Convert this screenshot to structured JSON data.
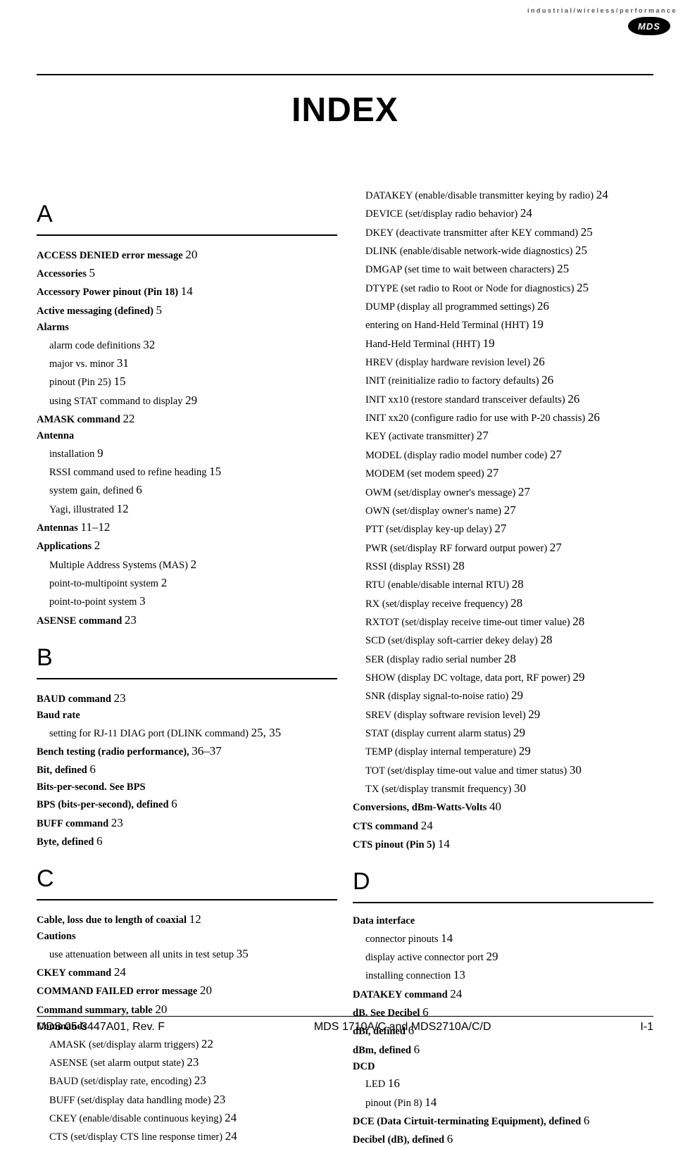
{
  "branding": {
    "tagline": "industrial/wireless/performance",
    "logo_text": "MDS",
    "logo_bg": "#000000",
    "logo_fg": "#ffffff"
  },
  "title": "INDEX",
  "footer": {
    "left": "MDS 05-3447A01, Rev. F",
    "center": "MDS 1710A/C and MDS2710A/C/D",
    "right": "I-1"
  },
  "left_col": [
    {
      "type": "letter",
      "text": "A"
    },
    {
      "type": "entry",
      "bold": true,
      "label": "ACCESS DENIED error message",
      "page": "20"
    },
    {
      "type": "entry",
      "bold": true,
      "label": "Accessories",
      "page": "5"
    },
    {
      "type": "entry",
      "bold": true,
      "label": "Accessory Power pinout (Pin 18)",
      "page": "14"
    },
    {
      "type": "entry",
      "bold": true,
      "label": "Active messaging (defined)",
      "page": "5"
    },
    {
      "type": "entry",
      "bold": true,
      "label": "Alarms"
    },
    {
      "type": "sub",
      "label": "alarm code definitions",
      "page": "32"
    },
    {
      "type": "sub",
      "label": "major vs. minor",
      "page": "31"
    },
    {
      "type": "sub",
      "label": "pinout (Pin 25)",
      "page": "15"
    },
    {
      "type": "sub",
      "label": "using STAT command to display",
      "page": "29"
    },
    {
      "type": "entry",
      "bold": true,
      "label": "AMASK command",
      "page": "22"
    },
    {
      "type": "entry",
      "bold": true,
      "label": "Antenna"
    },
    {
      "type": "sub",
      "label": "installation",
      "page": "9"
    },
    {
      "type": "sub",
      "label": "RSSI command used to refine heading",
      "page": "15"
    },
    {
      "type": "sub",
      "label": "system gain, defined",
      "page": "6"
    },
    {
      "type": "sub",
      "label": "Yagi, illustrated",
      "page": "12"
    },
    {
      "type": "entry",
      "bold": true,
      "label": "Antennas",
      "page": "11–12"
    },
    {
      "type": "entry",
      "bold": true,
      "label": "Applications",
      "page": "2"
    },
    {
      "type": "sub",
      "label": "Multiple Address Systems (MAS)",
      "page": "2"
    },
    {
      "type": "sub",
      "label": "point-to-multipoint system",
      "page": "2"
    },
    {
      "type": "sub",
      "label": "point-to-point system",
      "page": "3"
    },
    {
      "type": "entry",
      "bold": true,
      "label": "ASENSE command",
      "page": "23"
    },
    {
      "type": "letter",
      "text": "B"
    },
    {
      "type": "entry",
      "bold": true,
      "label": "BAUD command",
      "page": "23"
    },
    {
      "type": "entry",
      "bold": true,
      "label": "Baud rate"
    },
    {
      "type": "sub",
      "label": "setting for RJ-11 DIAG port (DLINK command)",
      "page": "25, 35"
    },
    {
      "type": "entry",
      "bold": true,
      "label": "Bench testing (radio performance),",
      "page": "36–37"
    },
    {
      "type": "entry",
      "bold": true,
      "label": "Bit, defined",
      "page": "6"
    },
    {
      "type": "entry",
      "bold": true,
      "label": "Bits-per-second. See BPS"
    },
    {
      "type": "entry",
      "bold": true,
      "label": "BPS (bits-per-second), defined",
      "page": "6"
    },
    {
      "type": "entry",
      "bold": true,
      "label": "BUFF command",
      "page": "23"
    },
    {
      "type": "entry",
      "bold": true,
      "label": "Byte, defined",
      "page": "6"
    },
    {
      "type": "letter",
      "text": "C"
    },
    {
      "type": "entry",
      "bold": true,
      "label": "Cable, loss due to length of coaxial",
      "page": "12"
    },
    {
      "type": "entry",
      "bold": true,
      "label": "Cautions"
    },
    {
      "type": "sub",
      "label": "use attenuation between all units in test setup",
      "page": "35"
    },
    {
      "type": "entry",
      "bold": true,
      "label": "CKEY command",
      "page": "24"
    },
    {
      "type": "entry",
      "bold": true,
      "label": "COMMAND FAILED error message",
      "page": "20"
    },
    {
      "type": "entry",
      "bold": true,
      "label": "Command summary, table",
      "page": "20"
    },
    {
      "type": "entry",
      "bold": true,
      "label": "Commands"
    },
    {
      "type": "sub",
      "label": "AMASK (set/display alarm triggers)",
      "page": "22"
    },
    {
      "type": "sub",
      "label": "ASENSE (set alarm output state)",
      "page": "23"
    },
    {
      "type": "sub",
      "label": "BAUD (set/display rate, encoding)",
      "page": "23"
    },
    {
      "type": "sub",
      "label": "BUFF (set/display data handling mode)",
      "page": "23"
    },
    {
      "type": "sub",
      "label": "CKEY (enable/disable continuous keying)",
      "page": "24"
    },
    {
      "type": "sub",
      "label": "CTS (set/display CTS line response timer)",
      "page": "24"
    }
  ],
  "right_col": [
    {
      "type": "sub",
      "label": "DATAKEY (enable/disable transmitter keying by radio)",
      "page": "24"
    },
    {
      "type": "sub",
      "label": "DEVICE (set/display radio behavior)",
      "page": "24"
    },
    {
      "type": "sub",
      "label": "DKEY (deactivate transmitter after KEY command)",
      "page": "25"
    },
    {
      "type": "sub",
      "label": "DLINK (enable/disable network-wide diagnostics)",
      "page": "25"
    },
    {
      "type": "sub",
      "label": "DMGAP (set time to wait between characters)",
      "page": "25"
    },
    {
      "type": "sub",
      "label": "DTYPE (set radio to Root or Node for diagnostics)",
      "page": "25"
    },
    {
      "type": "sub",
      "label": "DUMP (display all programmed settings)",
      "page": "26"
    },
    {
      "type": "sub",
      "label": "entering on Hand-Held Terminal (HHT)",
      "page": "19"
    },
    {
      "type": "sub",
      "label": "Hand-Held Terminal (HHT)",
      "page": "19"
    },
    {
      "type": "sub",
      "label": "HREV (display hardware revision level)",
      "page": "26"
    },
    {
      "type": "sub",
      "label": "INIT (reinitialize radio to factory defaults)",
      "page": "26"
    },
    {
      "type": "sub",
      "label": "INIT xx10 (restore standard transceiver defaults)",
      "page": "26"
    },
    {
      "type": "sub",
      "label": "INIT xx20 (configure radio for use with P-20 chassis)",
      "page": "26"
    },
    {
      "type": "sub",
      "label": "KEY (activate transmitter)",
      "page": "27"
    },
    {
      "type": "sub",
      "label": "MODEL (display radio model number code)",
      "page": "27"
    },
    {
      "type": "sub",
      "label": "MODEM (set modem speed)",
      "page": "27"
    },
    {
      "type": "sub",
      "label": "OWM (set/display owner's message)",
      "page": "27"
    },
    {
      "type": "sub",
      "label": "OWN (set/display owner's name)",
      "page": "27"
    },
    {
      "type": "sub",
      "label": "PTT (set/display key-up delay)",
      "page": "27"
    },
    {
      "type": "sub",
      "label": "PWR (set/display RF forward output power)",
      "page": "27"
    },
    {
      "type": "sub",
      "label": "RSSI (display RSSI)",
      "page": "28"
    },
    {
      "type": "sub",
      "label": "RTU (enable/disable internal RTU)",
      "page": "28"
    },
    {
      "type": "sub",
      "label": "RX (set/display receive frequency)",
      "page": "28"
    },
    {
      "type": "sub",
      "label": "RXTOT (set/display receive time-out timer value)",
      "page": "28"
    },
    {
      "type": "sub",
      "label": "SCD (set/display soft-carrier dekey delay)",
      "page": "28"
    },
    {
      "type": "sub",
      "label": "SER (display radio serial number",
      "page": "28"
    },
    {
      "type": "sub",
      "label": "SHOW (display DC voltage, data port, RF power)",
      "page": "29"
    },
    {
      "type": "sub",
      "label": "SNR (display signal-to-noise ratio)",
      "page": "29"
    },
    {
      "type": "sub",
      "label": "SREV (display software revision level)",
      "page": "29"
    },
    {
      "type": "sub",
      "label": "STAT (display current alarm status)",
      "page": "29"
    },
    {
      "type": "sub",
      "label": "TEMP (display internal temperature)",
      "page": "29"
    },
    {
      "type": "sub",
      "label": "TOT (set/display time-out value and timer status)",
      "page": "30"
    },
    {
      "type": "sub",
      "label": "TX (set/display transmit frequency)",
      "page": "30"
    },
    {
      "type": "entry",
      "bold": true,
      "label": "Conversions, dBm-Watts-Volts",
      "page": "40"
    },
    {
      "type": "entry",
      "bold": true,
      "label": "CTS command",
      "page": "24"
    },
    {
      "type": "entry",
      "bold": true,
      "label": "CTS pinout (Pin 5)",
      "page": "14"
    },
    {
      "type": "letter",
      "text": "D"
    },
    {
      "type": "entry",
      "bold": true,
      "label": "Data interface"
    },
    {
      "type": "sub",
      "label": "connector pinouts",
      "page": "14"
    },
    {
      "type": "sub",
      "label": "display active connector port",
      "page": "29"
    },
    {
      "type": "sub",
      "label": "installing connection",
      "page": "13"
    },
    {
      "type": "entry",
      "bold": true,
      "label": "DATAKEY command",
      "page": "24"
    },
    {
      "type": "entry",
      "bold": true,
      "label": "dB. See Decibel",
      "page": "6"
    },
    {
      "type": "entry",
      "bold": true,
      "label": "dBi, defined",
      "page": "6"
    },
    {
      "type": "entry",
      "bold": true,
      "label": "dBm, defined",
      "page": "6"
    },
    {
      "type": "entry",
      "bold": true,
      "label": "DCD"
    },
    {
      "type": "sub",
      "label": "LED",
      "page": "16"
    },
    {
      "type": "sub",
      "label": "pinout (Pin 8)",
      "page": "14"
    },
    {
      "type": "entry",
      "bold": true,
      "label": "DCE (Data Cirtuit-terminating Equipment), defined",
      "page": "6"
    },
    {
      "type": "entry",
      "bold": true,
      "label": "Decibel (dB), defined",
      "page": "6"
    }
  ]
}
